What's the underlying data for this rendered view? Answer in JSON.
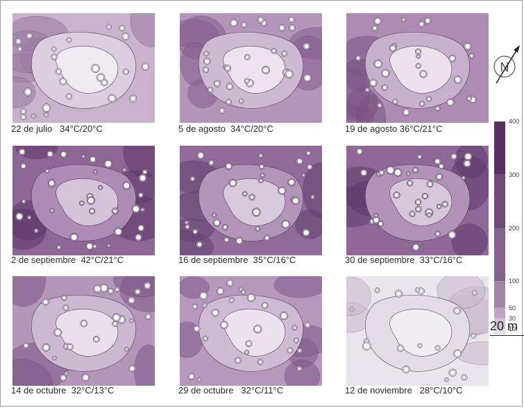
{
  "panels": [
    {
      "id": "p1",
      "caption": "22 de julio   34°C/20°C",
      "base": "#c8b2cc",
      "mid": "#dccde0",
      "light": "#f0eaf2",
      "dark": "#9b7aa3",
      "level": 0.25
    },
    {
      "id": "p2",
      "caption": "5 de agosto  34°C/20°C",
      "base": "#b596bb",
      "mid": "#cdb9d2",
      "light": "#ece3ee",
      "dark": "#855f8f",
      "level": 0.35
    },
    {
      "id": "p3",
      "caption": "19 de agosto 36°C/21°C",
      "base": "#ad8bb3",
      "mid": "#c7b0cc",
      "light": "#ebe2ed",
      "dark": "#7a5385",
      "level": 0.4
    },
    {
      "id": "p4",
      "caption": "2 de septiembre  42°C/21°C",
      "base": "#8e6797",
      "mid": "#ad8bb4",
      "light": "#d5c4d9",
      "dark": "#5d3768",
      "level": 0.6
    },
    {
      "id": "p5",
      "caption": "16 de septiembre  35°C/16°C",
      "base": "#916b9a",
      "mid": "#b495ba",
      "light": "#d9c9dc",
      "dark": "#63406d",
      "level": 0.55
    },
    {
      "id": "p6",
      "caption": "30 de septiembre  33°C/16°C",
      "base": "#8f6898",
      "mid": "#b292b8",
      "light": "#d7c7db",
      "dark": "#5f3a69",
      "level": 0.55
    },
    {
      "id": "p7",
      "caption": "14 de octubre  32°C/13°C",
      "base": "#b596bb",
      "mid": "#cdb8d1",
      "light": "#eadfec",
      "dark": "#7d5888",
      "level": 0.35
    },
    {
      "id": "p8",
      "caption": "29 de octubre   32°C/11°C",
      "base": "#b798bd",
      "mid": "#cfbbd3",
      "light": "#ece2ee",
      "dark": "#7f5a89",
      "level": 0.35
    },
    {
      "id": "p9",
      "caption": "12 de noviembre   28°C/10°C",
      "base": "#eae5ec",
      "mid": "#e3dbe6",
      "light": "#f2eff4",
      "dark": "#c9b9cd",
      "level": 0.02
    }
  ],
  "legend": {
    "ticks": [
      "400",
      "300",
      "200",
      "100",
      "50",
      "30",
      "10"
    ],
    "tick_values": [
      400,
      300,
      200,
      100,
      50,
      30,
      10
    ],
    "colors": [
      "#5a2f63",
      "#6f4778",
      "#86628e",
      "#a384a9",
      "#bea6c3",
      "#d4c3d8",
      "#e6dce9"
    ]
  },
  "scale": {
    "label": "20 m"
  },
  "north": {
    "label": "N"
  }
}
